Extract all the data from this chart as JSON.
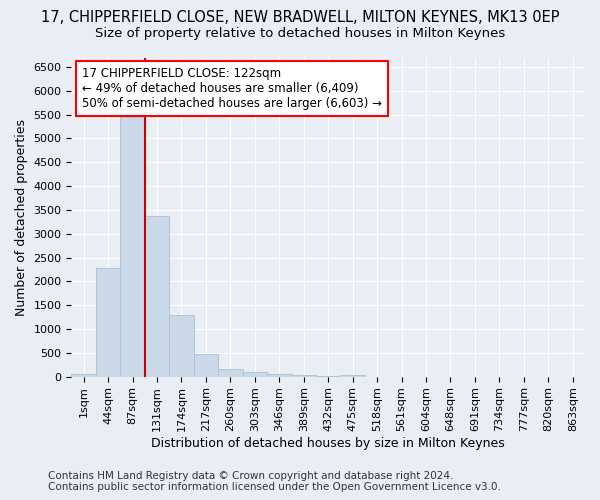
{
  "title": "17, CHIPPERFIELD CLOSE, NEW BRADWELL, MILTON KEYNES, MK13 0EP",
  "subtitle": "Size of property relative to detached houses in Milton Keynes",
  "xlabel": "Distribution of detached houses by size in Milton Keynes",
  "ylabel": "Number of detached properties",
  "footer_line1": "Contains HM Land Registry data © Crown copyright and database right 2024.",
  "footer_line2": "Contains public sector information licensed under the Open Government Licence v3.0.",
  "bin_labels": [
    "1sqm",
    "44sqm",
    "87sqm",
    "131sqm",
    "174sqm",
    "217sqm",
    "260sqm",
    "303sqm",
    "346sqm",
    "389sqm",
    "432sqm",
    "475sqm",
    "518sqm",
    "561sqm",
    "604sqm",
    "648sqm",
    "691sqm",
    "734sqm",
    "777sqm",
    "820sqm",
    "863sqm"
  ],
  "bar_values": [
    60,
    2280,
    5450,
    3380,
    1290,
    480,
    160,
    100,
    60,
    30,
    10,
    40,
    0,
    0,
    0,
    0,
    0,
    0,
    0,
    0,
    0
  ],
  "bar_color": "#c9d9e8",
  "bar_edgecolor": "#a8c0d6",
  "vline_x": 3,
  "vline_color": "#cc0000",
  "annotation_line1": "17 CHIPPERFIELD CLOSE: 122sqm",
  "annotation_line2": "← 49% of detached houses are smaller (6,409)",
  "annotation_line3": "50% of semi-detached houses are larger (6,603) →",
  "ylim": [
    0,
    6700
  ],
  "yticks": [
    0,
    500,
    1000,
    1500,
    2000,
    2500,
    3000,
    3500,
    4000,
    4500,
    5000,
    5500,
    6000,
    6500
  ],
  "bg_color": "#e8eef4",
  "plot_bg_color": "#e8eef4",
  "grid_color": "#ffffff",
  "title_fontsize": 10.5,
  "subtitle_fontsize": 9.5,
  "axis_label_fontsize": 9,
  "tick_fontsize": 8,
  "annotation_fontsize": 8.5,
  "footer_fontsize": 7.5
}
